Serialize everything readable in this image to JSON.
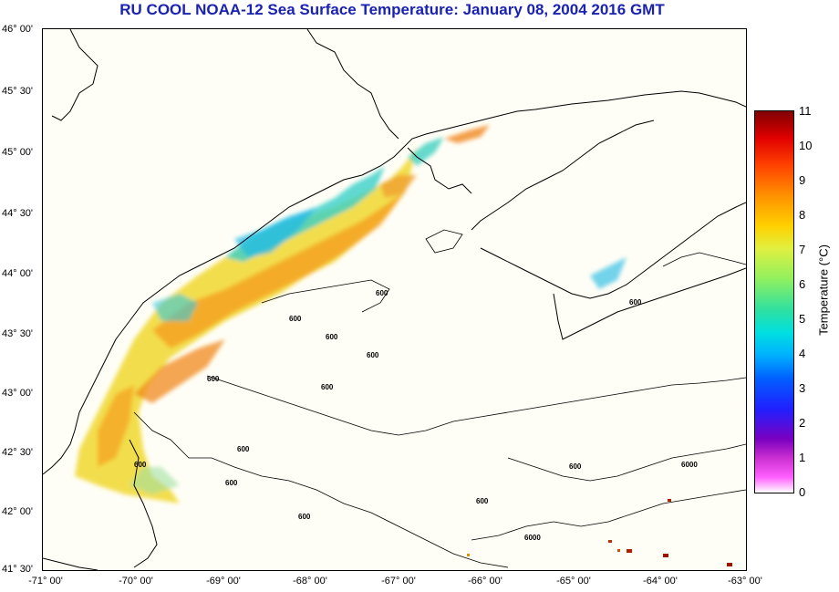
{
  "title": "RU COOL  NOAA-12  Sea Surface Temperature:  January 08, 2004 2016 GMT",
  "y_ticks": [
    "46° 00'",
    "45° 30'",
    "45° 00'",
    "44° 30'",
    "44° 00'",
    "43° 30'",
    "43° 00'",
    "42° 30'",
    "42° 00'",
    "41° 30'"
  ],
  "x_ticks": [
    "-71° 00'",
    "-70° 00'",
    "-69° 00'",
    "-68° 00'",
    "-67° 00'",
    "-66° 00'",
    "-65° 00'",
    "-64° 00'",
    "-63° 00'"
  ],
  "colorbar": {
    "title": "Temperature (°C)",
    "labels": [
      "11",
      "10",
      "9",
      "8",
      "7",
      "6",
      "5",
      "4",
      "3",
      "2",
      "1",
      "0"
    ]
  },
  "contour_labels": [
    "600",
    "600",
    "600",
    "600",
    "600",
    "600",
    "600",
    "600",
    "600",
    "600",
    "600",
    "600",
    "600",
    "6000",
    "6000"
  ],
  "colors": {
    "title": "#1a22b0",
    "land_bg": "#fffef6",
    "coastline": "#000000"
  }
}
